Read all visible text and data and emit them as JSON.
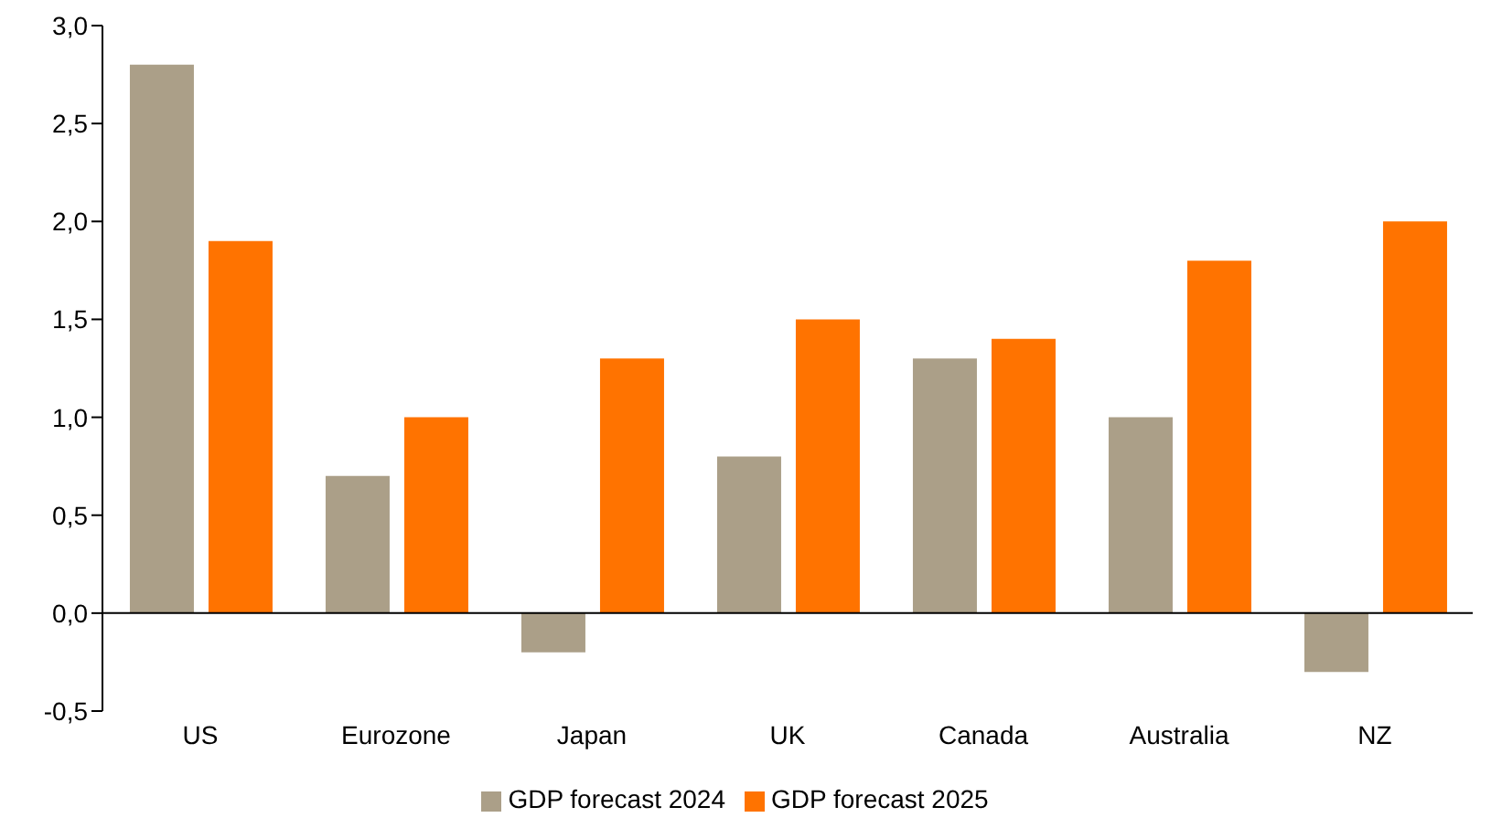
{
  "chart_data": {
    "type": "bar",
    "categories": [
      "US",
      "Eurozone",
      "Japan",
      "UK",
      "Canada",
      "Australia",
      "NZ"
    ],
    "series": [
      {
        "name": "GDP forecast 2024",
        "color": "#ab9f88",
        "values": [
          2.8,
          0.7,
          -0.2,
          0.8,
          1.3,
          1.0,
          -0.3
        ]
      },
      {
        "name": "GDP forecast 2025",
        "color": "#ff7300",
        "values": [
          1.9,
          1.0,
          1.3,
          1.5,
          1.4,
          1.8,
          2.0
        ]
      }
    ],
    "ylim": [
      -0.5,
      3
    ],
    "yticks": [
      {
        "value": -0.5,
        "label": "-0,5"
      },
      {
        "value": 0,
        "label": "0,0"
      },
      {
        "value": 0.5,
        "label": "0,5"
      },
      {
        "value": 1,
        "label": "1,0"
      },
      {
        "value": 1.5,
        "label": "1,5"
      },
      {
        "value": 2,
        "label": "2,0"
      },
      {
        "value": 2.5,
        "label": "2,5"
      },
      {
        "value": 3,
        "label": "3,0"
      }
    ],
    "legend": "bottom"
  }
}
